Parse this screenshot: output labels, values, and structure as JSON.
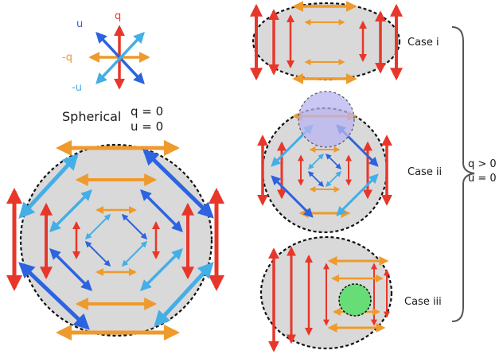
{
  "legend": {
    "q": "q",
    "u": "u",
    "neg_q": "-q",
    "neg_u": "-u"
  },
  "spherical": {
    "title": "Spherical",
    "q_line": "q = 0",
    "u_line": "u = 0"
  },
  "cases": {
    "case_i": "Case  i",
    "case_ii": "Case  ii",
    "case_iii": "Case  iii"
  },
  "brace": {
    "q_line": "q > 0",
    "u_line": "u = 0"
  },
  "colors": {
    "q": "#e8372a",
    "neg_q": "#ee9a2c",
    "u": "#2c63e0",
    "neg_u": "#44aee6",
    "disk_fill": "#d9d9d9",
    "blue_bubble": "#b9b4f2",
    "green_spot": "#66dd77"
  }
}
